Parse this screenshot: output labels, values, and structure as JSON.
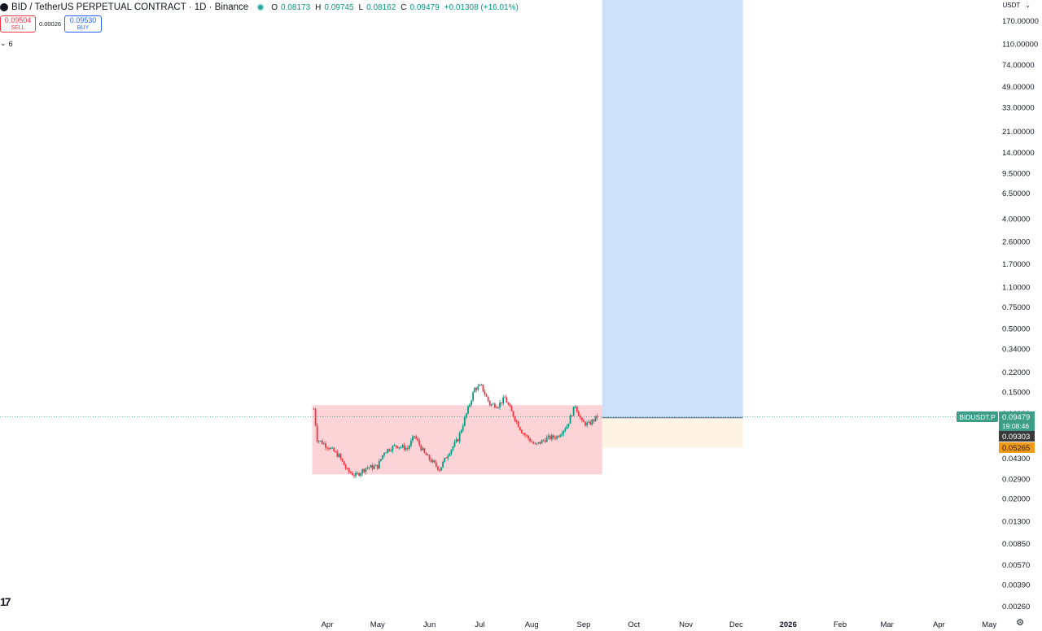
{
  "header": {
    "symbol": "BID / TetherUS PERPETUAL CONTRACT · 1D · Binance",
    "ohlc": {
      "o_label": "O",
      "o": "0.08173",
      "h_label": "H",
      "h": "0.09745",
      "l_label": "L",
      "l": "0.08162",
      "c_label": "C",
      "c": "0.09479",
      "change": "+0.01308 (+16.01%)"
    }
  },
  "trade": {
    "sell_price": "0.09504",
    "sell_label": "SELL",
    "spread": "0.00026",
    "buy_price": "0.09530",
    "buy_label": "BUY"
  },
  "indicators_collapse": "6",
  "currency": "USDT",
  "watermark": "17",
  "colors": {
    "up": "#089981",
    "down": "#f23645",
    "range_box": "rgba(242,54,69,0.22)",
    "target_zone": "rgba(41,124,230,0.24)",
    "stop_zone": "rgba(255,176,64,0.14)",
    "price_tag": "#3d9e87",
    "level_tag": "#3a3a3a",
    "stop_tag": "#ef9a1a"
  },
  "chart_data": {
    "type": "candlestick",
    "title": "BID / TetherUS PERPETUAL CONTRACT · 1D · Binance",
    "x_ticks": [
      "Apr",
      "May",
      "Jun",
      "Jul",
      "Aug",
      "Sep",
      "Oct",
      "Nov",
      "Dec",
      "2026",
      "Feb",
      "Mar",
      "Apr",
      "May"
    ],
    "x_ticks_bold": [
      "2026"
    ],
    "y_scale": "log",
    "y_ticks": [
      "170.00000",
      "110.00000",
      "74.00000",
      "49.00000",
      "33.00000",
      "21.00000",
      "14.00000",
      "9.50000",
      "6.50000",
      "4.00000",
      "2.60000",
      "1.70000",
      "1.10000",
      "0.75000",
      "0.50000",
      "0.34000",
      "0.22000",
      "0.15000",
      "0.10000",
      "0.06500",
      "0.04300",
      "0.02900",
      "0.02000",
      "0.01300",
      "0.00850",
      "0.00570",
      "0.00390",
      "0.00260"
    ],
    "price_path": [
      [
        "2025-03-24",
        0.11
      ],
      [
        "2025-03-26",
        0.062
      ],
      [
        "2025-04-02",
        0.053
      ],
      [
        "2025-04-08",
        0.045
      ],
      [
        "2025-04-13",
        0.034
      ],
      [
        "2025-04-18",
        0.031
      ],
      [
        "2025-04-24",
        0.036
      ],
      [
        "2025-05-01",
        0.037
      ],
      [
        "2025-05-05",
        0.049
      ],
      [
        "2025-05-12",
        0.055
      ],
      [
        "2025-05-19",
        0.052
      ],
      [
        "2025-05-23",
        0.066
      ],
      [
        "2025-05-29",
        0.047
      ],
      [
        "2025-06-07",
        0.035
      ],
      [
        "2025-06-12",
        0.047
      ],
      [
        "2025-06-18",
        0.062
      ],
      [
        "2025-06-24",
        0.11
      ],
      [
        "2025-06-28",
        0.162
      ],
      [
        "2025-07-02",
        0.168
      ],
      [
        "2025-07-07",
        0.12
      ],
      [
        "2025-07-12",
        0.118
      ],
      [
        "2025-07-16",
        0.135
      ],
      [
        "2025-07-19",
        0.11
      ],
      [
        "2025-07-26",
        0.072
      ],
      [
        "2025-08-03",
        0.055
      ],
      [
        "2025-08-10",
        0.063
      ],
      [
        "2025-08-16",
        0.065
      ],
      [
        "2025-08-22",
        0.08
      ],
      [
        "2025-08-27",
        0.118
      ],
      [
        "2025-08-31",
        0.085
      ],
      [
        "2025-09-04",
        0.082
      ],
      [
        "2025-09-09",
        0.09479
      ]
    ],
    "last_price": 0.09479,
    "range_box": {
      "from": "2025-03-23",
      "to": "2025-09-12",
      "top": 0.118,
      "bottom": 0.0318
    },
    "long_position": {
      "from": "2025-09-12",
      "to": "2025-12-05",
      "entry": 0.09303,
      "target": 400,
      "stop": 0.05265
    },
    "price_label": {
      "symbol": "BIDUSDT.P",
      "value": "0.09479",
      "countdown": "19:08:46"
    },
    "levels": [
      {
        "value": "0.09303"
      },
      {
        "value": "0.05265"
      }
    ]
  }
}
